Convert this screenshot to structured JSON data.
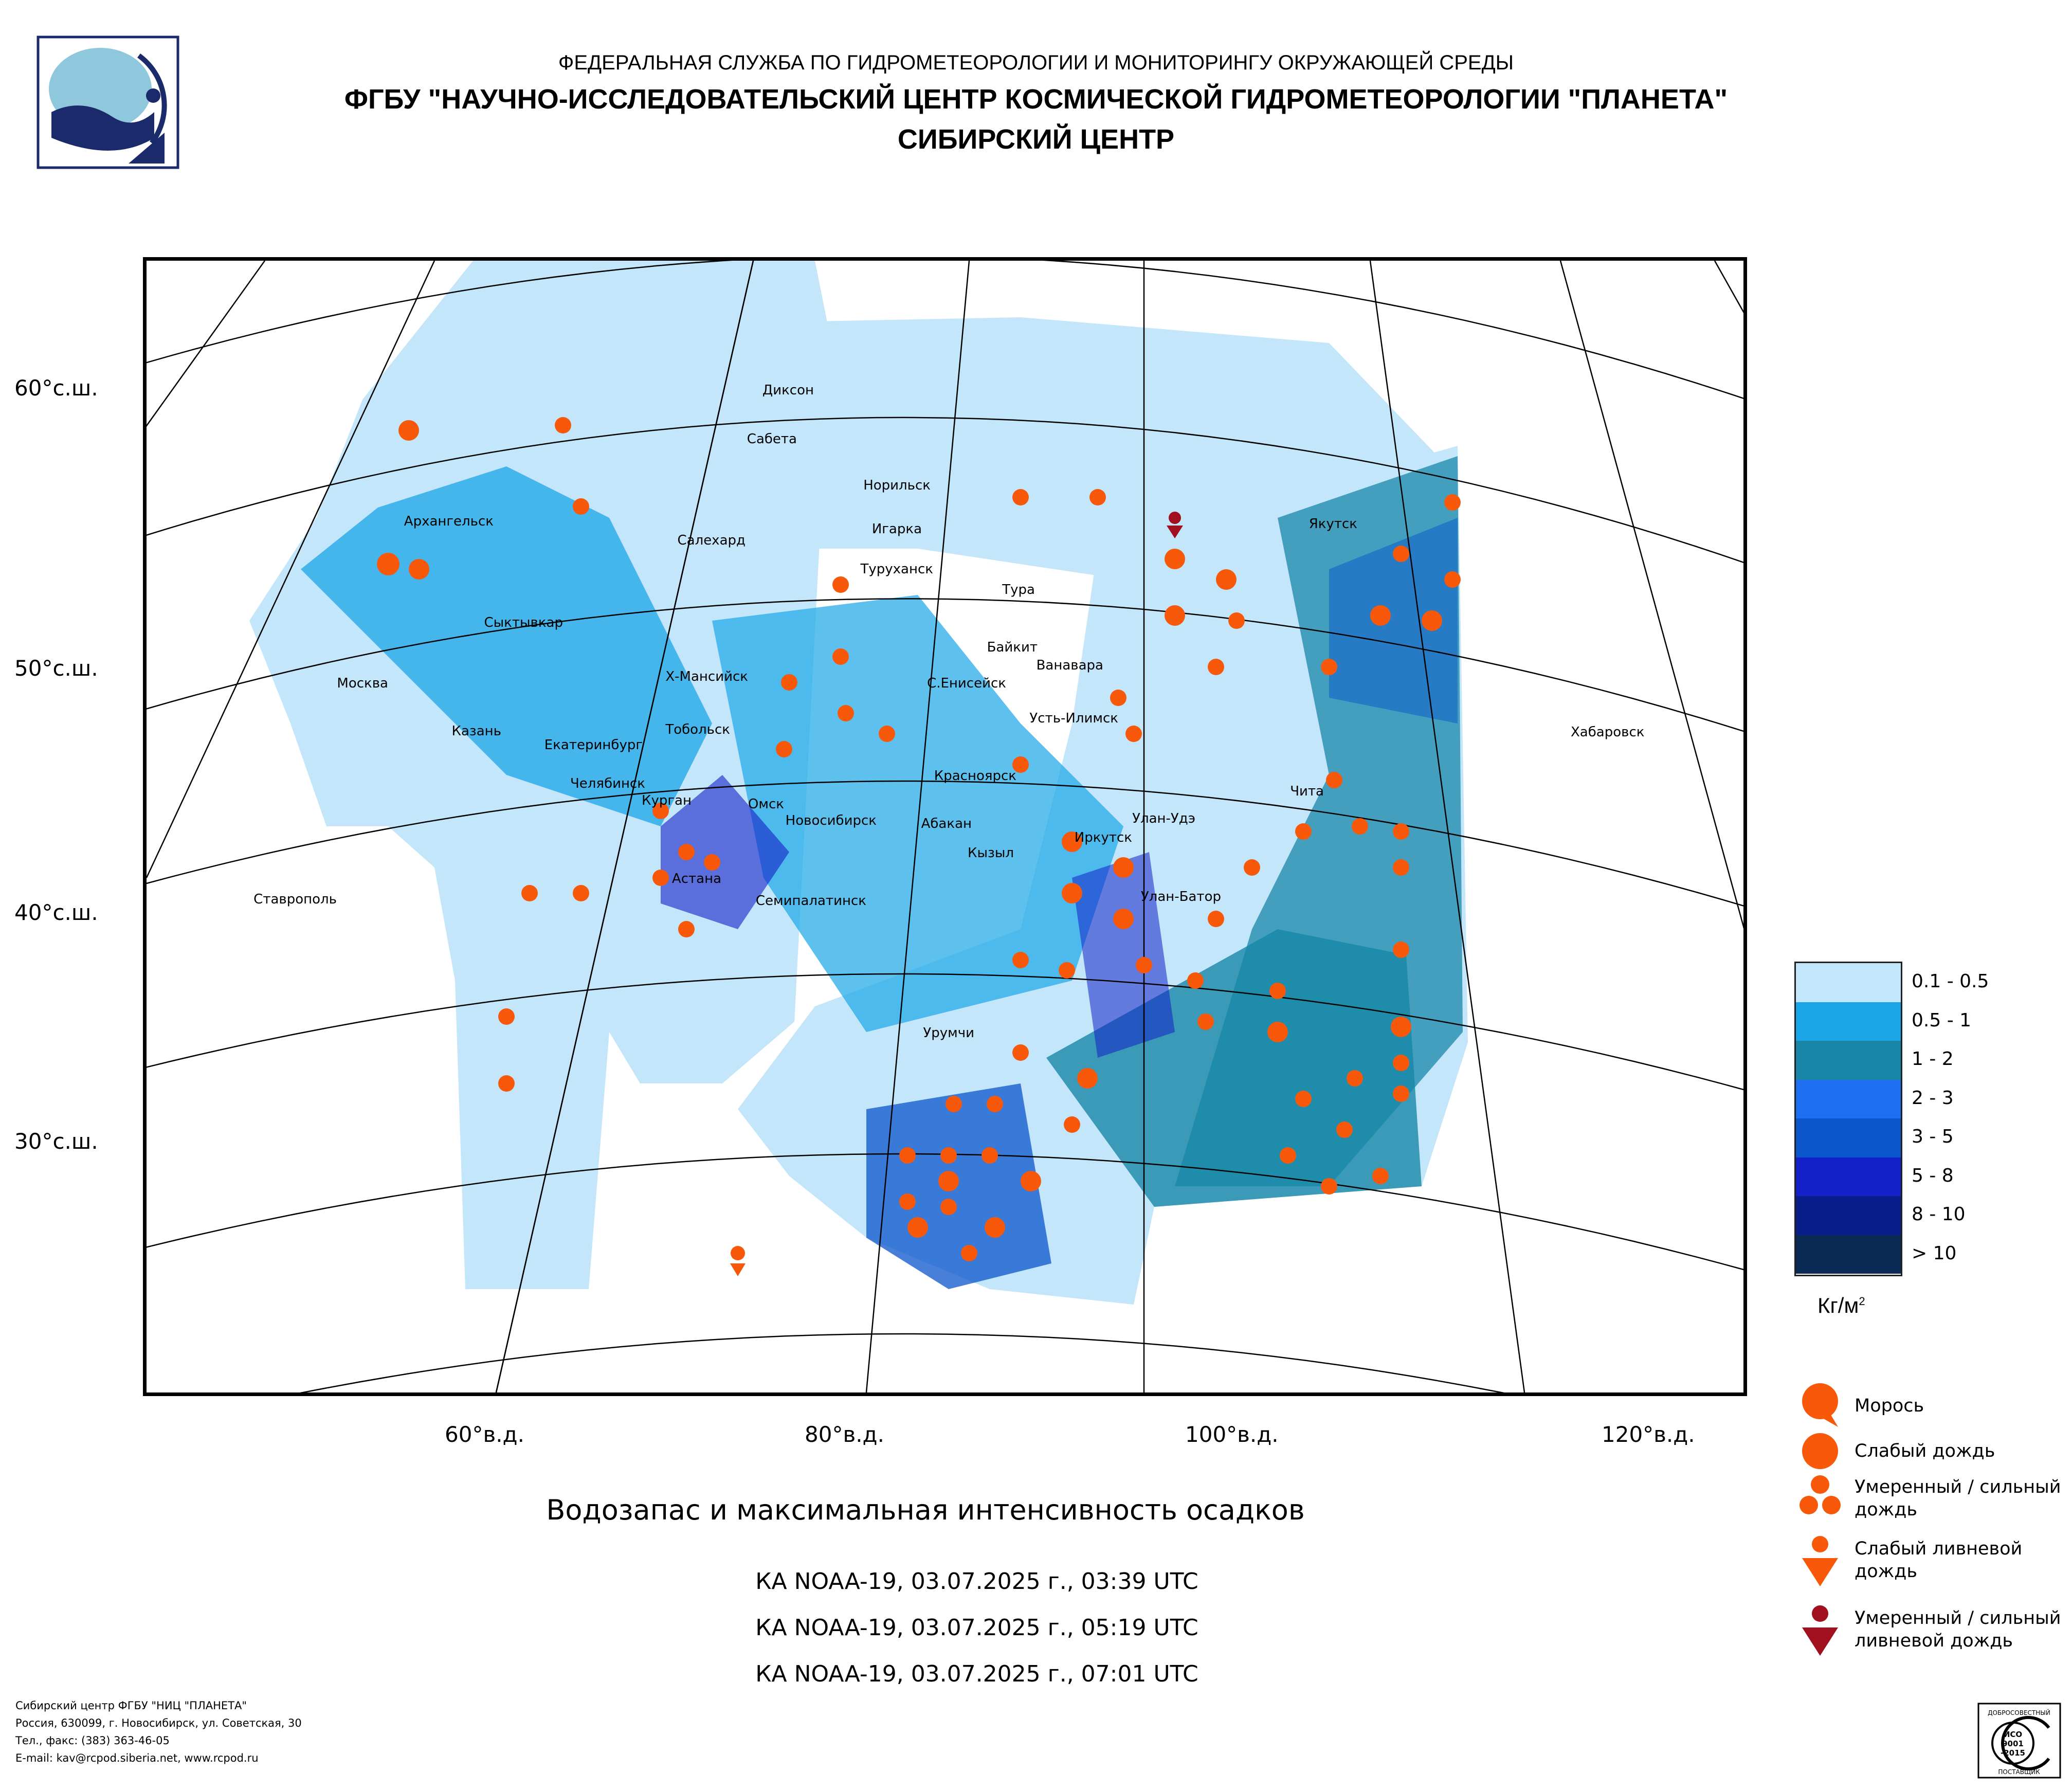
{
  "header": {
    "line1": "ФЕДЕРАЛЬНАЯ СЛУЖБА ПО ГИДРОМЕТЕОРОЛОГИИ И МОНИТОРИНГУ ОКРУЖАЮЩЕЙ СРЕДЫ",
    "line2": "ФГБУ \"НАУЧНО-ИССЛЕДОВАТЕЛЬСКИЙ ЦЕНТР КОСМИЧЕСКОЙ ГИДРОМЕТЕОРОЛОГИИ \"ПЛАНЕТА\"",
    "line3": "СИБИРСКИЙ ЦЕНТР"
  },
  "map": {
    "lat_labels": [
      "60°с.ш.",
      "50°с.ш.",
      "40°с.ш.",
      "30°с.ш."
    ],
    "lon_labels": [
      "60°в.д.",
      "80°в.д.",
      "100°в.д.",
      "120°в.д."
    ],
    "cities": [
      "Диксон",
      "Сабета",
      "Норильск",
      "Игарка",
      "Туруханск",
      "Салехард",
      "Архангельск",
      "Якутск",
      "Сыктывкар",
      "Тура",
      "Байкит",
      "Ванавара",
      "Москва",
      "Х-Мансийск",
      "С.Енисейск",
      "Хабаровск",
      "Казань",
      "Екатеринбург",
      "Тобольск",
      "Усть-Илимск",
      "Красноярск",
      "Челябинск",
      "Курган",
      "Омск",
      "Новосибирск",
      "Чита",
      "Абакан",
      "Улан-Удэ",
      "Иркутск",
      "Кызыл",
      "Астана",
      "Улан-Батор",
      "Семипалатинск",
      "Ставрополь",
      "Урумчи"
    ]
  },
  "title": "Водозапас и максимальная интенсивность осадков",
  "passes": [
    "КА NOAA-19, 03.07.2025 г., 03:39 UTC",
    "КА NOAA-19, 03.07.2025 г., 05:19 UTC",
    "КА NOAA-19, 03.07.2025 г., 07:01 UTC"
  ],
  "legend": {
    "classes": [
      {
        "label": "0.1 - 0.5",
        "color": "#c4e6fa"
      },
      {
        "label": "0.5 - 1",
        "color": "#1aa6e6"
      },
      {
        "label": "1 - 2",
        "color": "#1887a8"
      },
      {
        "label": "2 - 3",
        "color": "#1f6ff2"
      },
      {
        "label": "3 - 5",
        "color": "#0b56cc"
      },
      {
        "label": "5 - 8",
        "color": "#1420c8"
      },
      {
        "label": "8 - 10",
        "color": "#0b1d8a"
      },
      {
        "label": "> 10",
        "color": "#0a2a55"
      }
    ],
    "unit": "Кг/м",
    "unit_sup": "2",
    "symbols": {
      "drizzle": "Морось",
      "light_rain": "Слабый дождь",
      "moderate_rain_1": "Умеренный / сильный",
      "moderate_rain_2": "дождь",
      "light_shower_1": "Слабый ливневой",
      "light_shower_2": "дождь",
      "heavy_shower_1": "Умеренный / сильный",
      "heavy_shower_2": "ливневой дождь"
    },
    "symbol_colors": {
      "orange": "#f7580a",
      "darkred": "#a0101e"
    }
  },
  "footer": {
    "line1": "Сибирский центр ФГБУ \"НИЦ \"ПЛАНЕТА\"",
    "line2": "Россия, 630099, г. Новосибирск, ул. Советская, 30",
    "line3": "Тел., факс: (383) 363-46-05",
    "line4": "E-mail: kav@rcpod.siberia.net, www.rcpod.ru"
  },
  "iso": {
    "top": "ДОБРОСОВЕСТНЫЙ",
    "l1": "ИСО",
    "l2": "9001",
    "l3": "-2015",
    "bottom": "ПОСТАВЩИК"
  }
}
